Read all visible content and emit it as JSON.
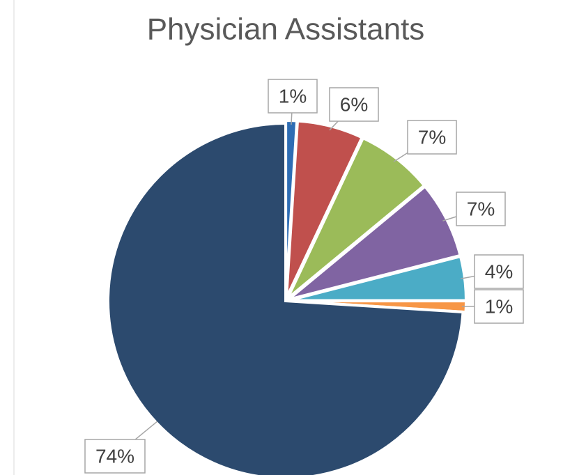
{
  "chart_data": {
    "type": "pie",
    "title": "Physician Assistants",
    "values": [
      1,
      6,
      7,
      7,
      4,
      1,
      74
    ],
    "value_labels": [
      "1%",
      "6%",
      "7%",
      "7%",
      "4%",
      "1%",
      "74%"
    ],
    "colors": [
      "#2e6db4",
      "#c0504d",
      "#9bbb59",
      "#8064a2",
      "#4bacc6",
      "#f79646",
      "#2c4a6e"
    ]
  }
}
